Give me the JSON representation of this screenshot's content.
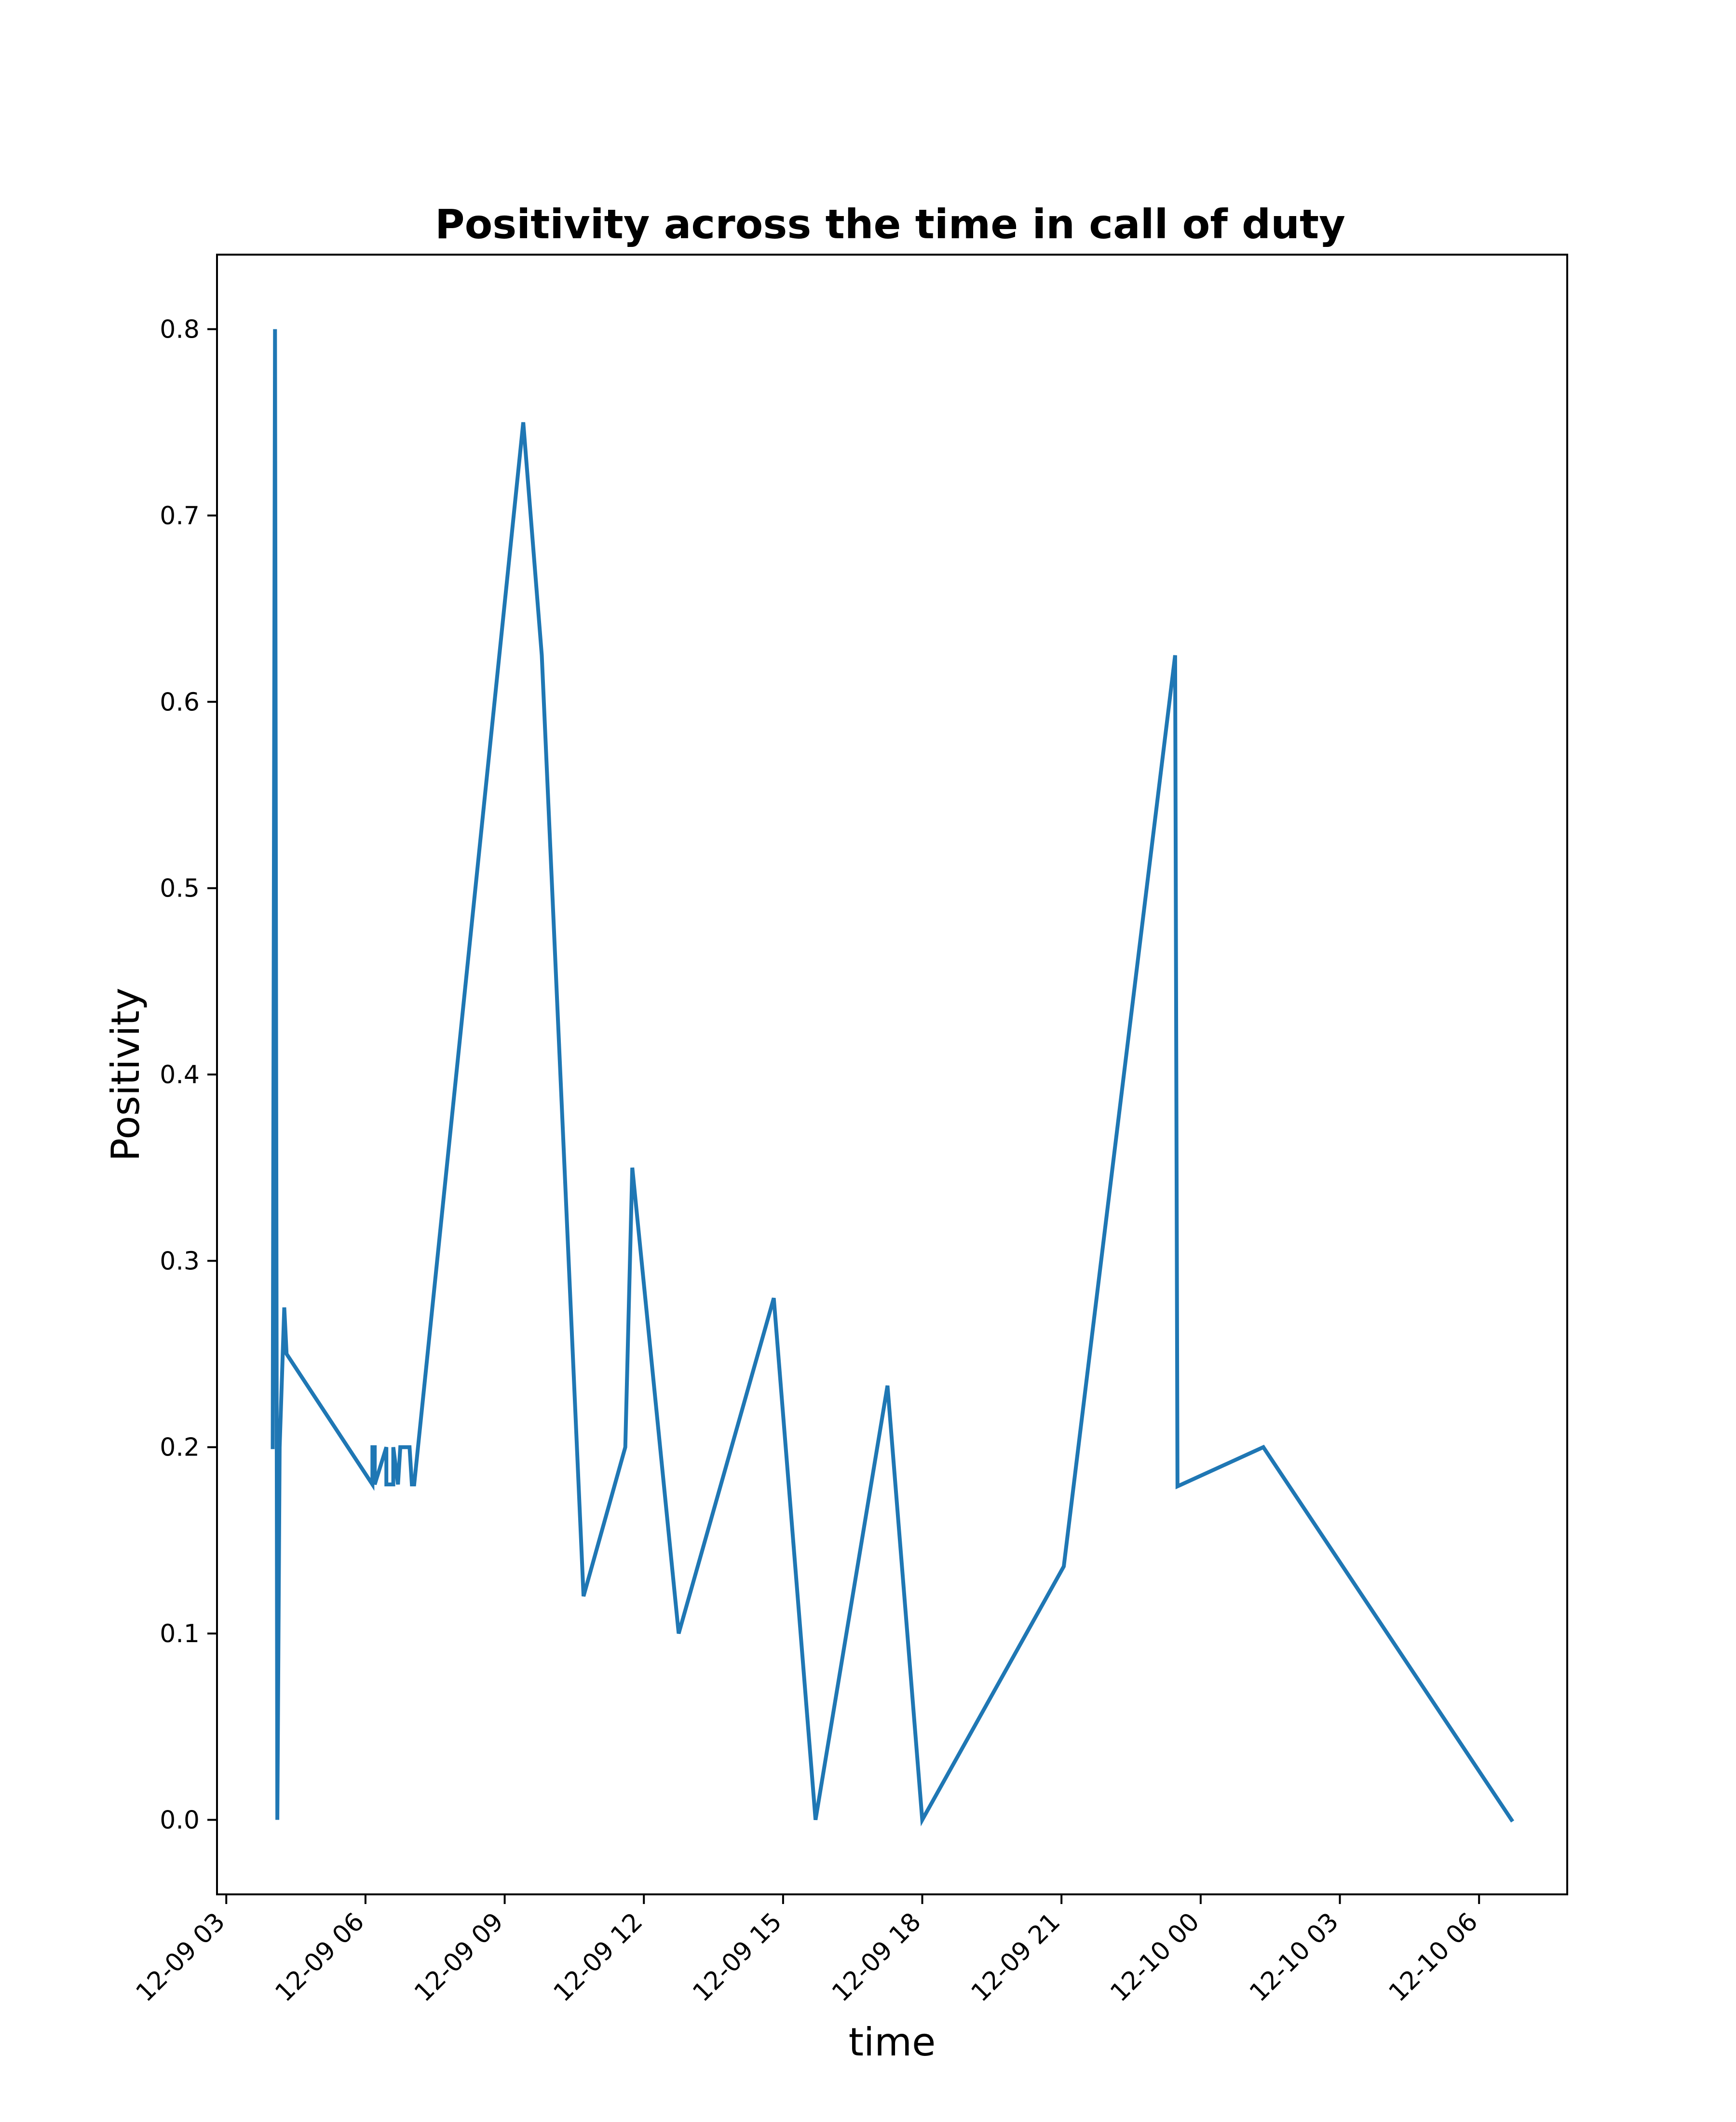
{
  "chart_data": {
    "type": "line",
    "title": "Positivity across the time in call of duty",
    "xlabel": "time",
    "ylabel": "Positivity",
    "x_tick_labels": [
      "12-09 03",
      "12-09 06",
      "12-09 09",
      "12-09 12",
      "12-09 15",
      "12-09 18",
      "12-09 21",
      "12-10 00",
      "12-10 03",
      "12-10 06"
    ],
    "y_tick_labels": [
      "0.0",
      "0.1",
      "0.2",
      "0.3",
      "0.4",
      "0.5",
      "0.6",
      "0.7",
      "0.8"
    ],
    "xlim": [
      "2023-12-09 02:48",
      "2023-12-10 07:54"
    ],
    "ylim": [
      -0.04,
      0.84
    ],
    "grid": false,
    "color": "#1f77b4",
    "x": [
      "2023-12-09 04:00",
      "2023-12-09 04:03",
      "2023-12-09 04:06",
      "2023-12-09 04:09",
      "2023-12-09 04:15",
      "2023-12-09 04:18",
      "2023-12-09 06:09",
      "2023-12-09 06:09",
      "2023-12-09 06:12",
      "2023-12-09 06:12",
      "2023-12-09 06:27",
      "2023-12-09 06:27",
      "2023-12-09 06:36",
      "2023-12-09 06:36",
      "2023-12-09 06:42",
      "2023-12-09 06:45",
      "2023-12-09 06:57",
      "2023-12-09 07:00",
      "2023-12-09 07:03",
      "2023-12-09 09:24",
      "2023-12-09 09:48",
      "2023-12-09 10:42",
      "2023-12-09 11:36",
      "2023-12-09 11:45",
      "2023-12-09 12:45",
      "2023-12-09 14:48",
      "2023-12-09 15:42",
      "2023-12-09 17:15",
      "2023-12-09 18:00",
      "2023-12-09 21:03",
      "2023-12-09 23:27",
      "2023-12-09 23:30",
      "2023-12-10 01:21",
      "2023-12-10 06:42"
    ],
    "values": [
      0.2,
      0.8,
      0.0,
      0.2,
      0.275,
      0.25,
      0.18,
      0.2,
      0.2,
      0.18,
      0.2,
      0.18,
      0.18,
      0.2,
      0.18,
      0.2,
      0.2,
      0.18,
      0.18,
      0.75,
      0.625,
      0.12,
      0.2,
      0.35,
      0.1,
      0.28,
      0.0,
      0.233,
      0.0,
      0.136,
      0.625,
      0.179,
      0.2,
      0.0
    ]
  }
}
